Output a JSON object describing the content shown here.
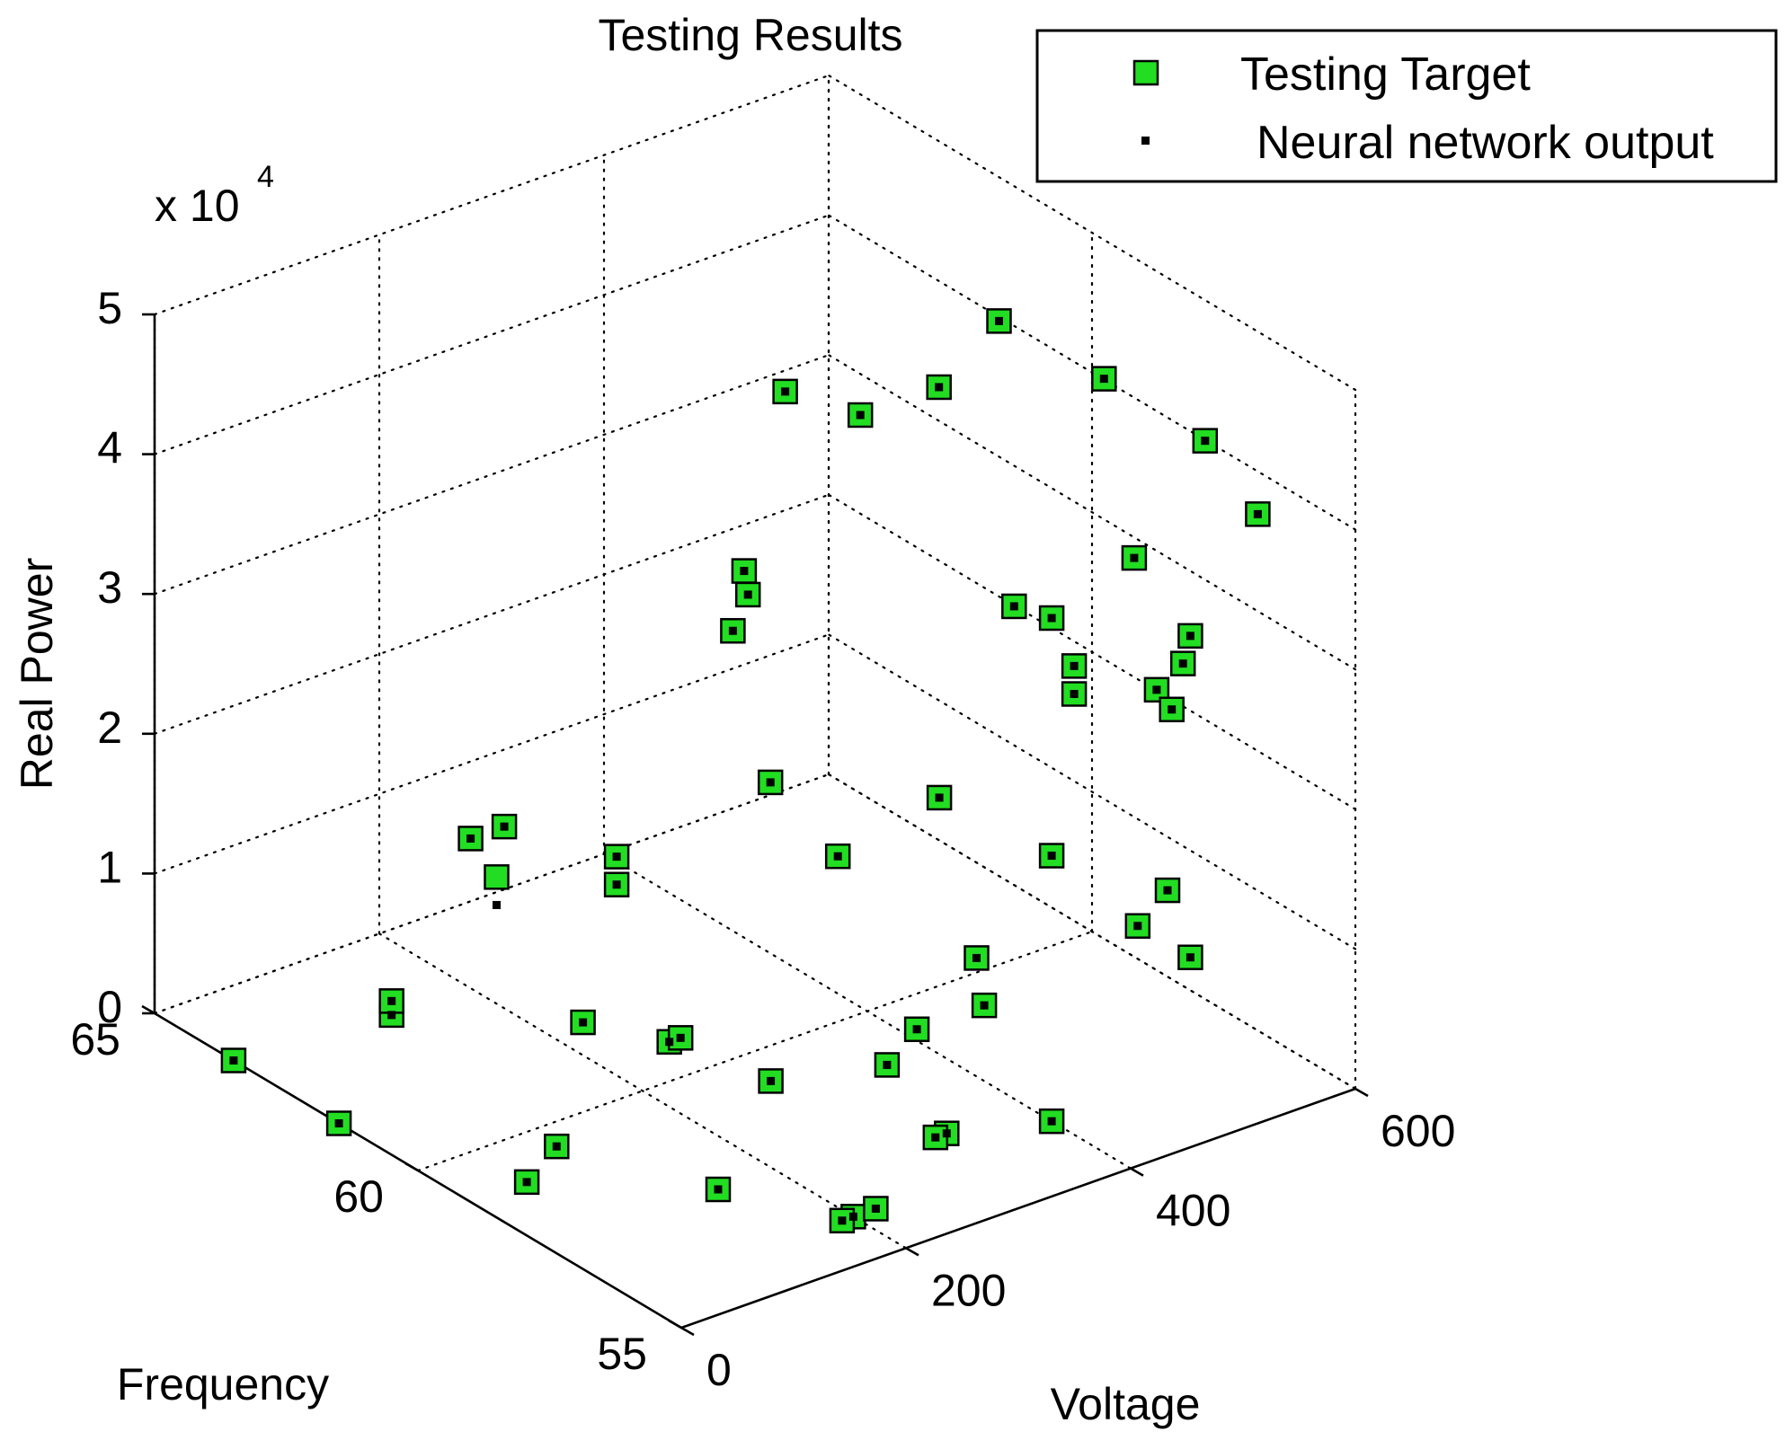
{
  "chart_data": {
    "type": "scatter3d",
    "title": "Testing Results",
    "xlabel": "Frequency",
    "ylabel": "Voltage",
    "zlabel": "Real Power",
    "xlim": [
      55,
      65
    ],
    "ylim": [
      0,
      600
    ],
    "zlim": [
      0,
      50000
    ],
    "xticks": [
      "55",
      "60",
      "65"
    ],
    "yticks": [
      "0",
      "200",
      "400",
      "600"
    ],
    "zticks": [
      "0",
      "1",
      "2",
      "3",
      "4",
      "5"
    ],
    "zmultiplier": "x 10",
    "zmultiplier_exp": "4",
    "grid": true,
    "legend_position": "top-right",
    "colors": {
      "target_fill": "#22dd22",
      "target_edge": "#000000",
      "output": "#000000"
    },
    "series": [
      {
        "name": "Testing Target",
        "marker": "square",
        "points": [
          [
            63.5,
            0,
            0
          ],
          [
            61.5,
            0,
            0
          ],
          [
            59.5,
            100,
            0
          ],
          [
            59,
            50,
            0
          ],
          [
            57.5,
            150,
            0
          ],
          [
            56,
            200,
            0
          ],
          [
            56,
            220,
            0
          ],
          [
            56,
            190,
            0
          ],
          [
            57,
            330,
            0
          ],
          [
            57,
            320,
            0
          ],
          [
            56.5,
            400,
            0
          ],
          [
            60.5,
            0,
            10000
          ],
          [
            60.5,
            0,
            11000
          ],
          [
            59,
            100,
            10000
          ],
          [
            58,
            130,
            10000
          ],
          [
            58,
            140,
            10000
          ],
          [
            56.5,
            150,
            10000
          ],
          [
            56,
            230,
            10000
          ],
          [
            56.5,
            280,
            10000
          ],
          [
            56.5,
            340,
            10000
          ],
          [
            57.5,
            380,
            10000
          ],
          [
            56,
            500,
            10000
          ],
          [
            57,
            500,
            10000
          ],
          [
            57.5,
            550,
            10000
          ],
          [
            60,
            70,
            19000
          ],
          [
            59,
            130,
            19000
          ],
          [
            59,
            130,
            21000
          ],
          [
            58,
            280,
            19000
          ],
          [
            56.5,
            400,
            19000
          ],
          [
            59,
            0,
            26000
          ],
          [
            59,
            30,
            26000
          ],
          [
            58,
            220,
            26000
          ],
          [
            56.5,
            300,
            26000
          ],
          [
            56.5,
            420,
            30000
          ],
          [
            56.5,
            420,
            32000
          ],
          [
            56,
            470,
            30000
          ],
          [
            55.5,
            460,
            30000
          ],
          [
            55.5,
            470,
            33000
          ],
          [
            56,
            500,
            33000
          ],
          [
            58,
            200,
            40000
          ],
          [
            58.5,
            220,
            40000
          ],
          [
            58.5,
            210,
            36000
          ],
          [
            57,
            390,
            36000
          ],
          [
            56.5,
            400,
            36000
          ],
          [
            56,
            450,
            40000
          ],
          [
            56,
            560,
            40000
          ],
          [
            57,
            560,
            43000
          ],
          [
            59,
            280,
            50000
          ],
          [
            58,
            300,
            50000
          ],
          [
            58,
            370,
            50000
          ],
          [
            57.5,
            400,
            55000
          ],
          [
            57,
            470,
            50000
          ]
        ]
      },
      {
        "name": "Neural network output",
        "marker": "dot",
        "points": [
          [
            63.5,
            0,
            0
          ],
          [
            61.5,
            0,
            0
          ],
          [
            59.5,
            100,
            0
          ],
          [
            59,
            50,
            0
          ],
          [
            57.5,
            150,
            0
          ],
          [
            56,
            200,
            0
          ],
          [
            56,
            220,
            0
          ],
          [
            56,
            190,
            0
          ],
          [
            57,
            330,
            0
          ],
          [
            57,
            320,
            0
          ],
          [
            56.5,
            400,
            0
          ],
          [
            60.5,
            0,
            10000
          ],
          [
            60.5,
            0,
            11000
          ],
          [
            59,
            100,
            10000
          ],
          [
            58,
            130,
            10000
          ],
          [
            58,
            140,
            10000
          ],
          [
            56.5,
            150,
            10000
          ],
          [
            56,
            230,
            10000
          ],
          [
            56.5,
            280,
            10000
          ],
          [
            56.5,
            340,
            10000
          ],
          [
            57.5,
            380,
            10000
          ],
          [
            56,
            500,
            10000
          ],
          [
            57,
            500,
            10000
          ],
          [
            57.5,
            550,
            10000
          ],
          [
            60,
            70,
            17000
          ],
          [
            59,
            130,
            19000
          ],
          [
            59,
            130,
            21000
          ],
          [
            58,
            280,
            19000
          ],
          [
            56.5,
            400,
            19000
          ],
          [
            59,
            0,
            26000
          ],
          [
            59,
            30,
            26000
          ],
          [
            58,
            220,
            26000
          ],
          [
            56.5,
            300,
            26000
          ],
          [
            56.5,
            420,
            30000
          ],
          [
            56.5,
            420,
            32000
          ],
          [
            56,
            470,
            30000
          ],
          [
            55.5,
            460,
            30000
          ],
          [
            55.5,
            470,
            33000
          ],
          [
            56,
            500,
            33000
          ],
          [
            58,
            200,
            40000
          ],
          [
            58.5,
            220,
            40000
          ],
          [
            58.5,
            210,
            36000
          ],
          [
            57,
            390,
            36000
          ],
          [
            56.5,
            400,
            36000
          ],
          [
            56,
            450,
            40000
          ],
          [
            56,
            560,
            40000
          ],
          [
            57,
            560,
            43000
          ],
          [
            59,
            280,
            50000
          ],
          [
            58,
            300,
            50000
          ],
          [
            58,
            370,
            50000
          ],
          [
            57.5,
            400,
            55000
          ],
          [
            57,
            470,
            50000
          ]
        ]
      }
    ]
  }
}
